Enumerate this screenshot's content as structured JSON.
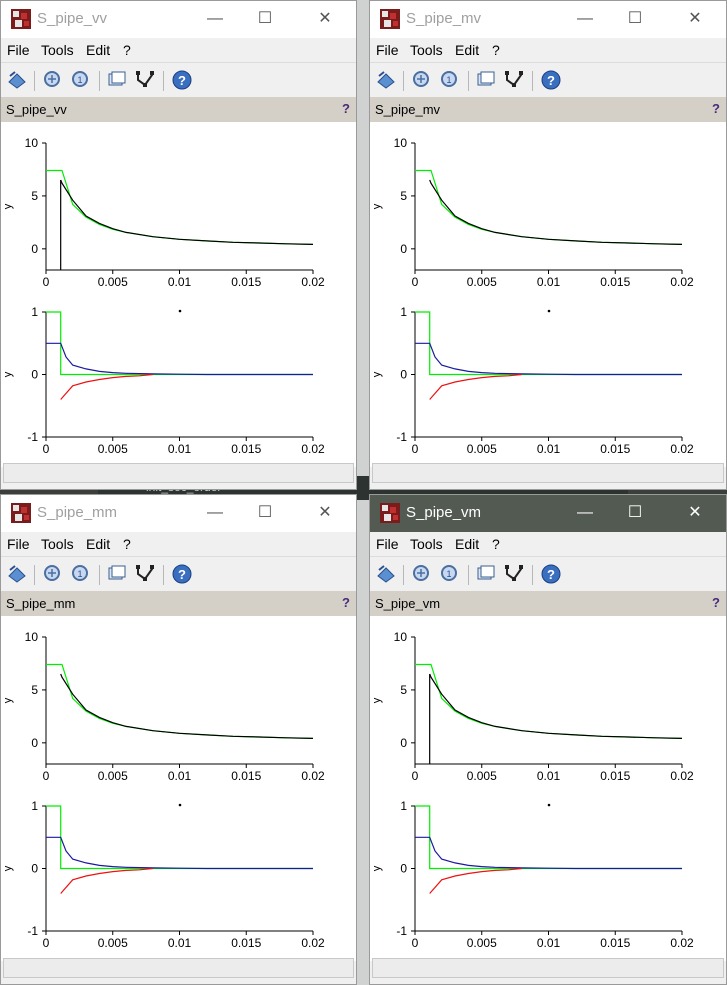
{
  "menu": {
    "file": "File",
    "tools": "Tools",
    "edit": "Edit",
    "help": "?"
  },
  "background": {
    "window_fragment_1": "init_sec_order",
    "window_fragment_2": "..."
  },
  "colors": {
    "measured": "#000000",
    "reference": "#00ee00",
    "blue_signal": "#1a1aa0",
    "red_signal": "#ee1111",
    "active_titlebar": "#525a52"
  },
  "windows": [
    {
      "title": "S_pipe_vv",
      "figure_name": "S_pipe_vv",
      "help": "?",
      "active": false,
      "controls": {
        "minimize": "—",
        "maximize": "☐",
        "close": "✕"
      }
    },
    {
      "title": "S_pipe_mv",
      "figure_name": "S_pipe_mv",
      "help": "?",
      "active": false,
      "controls": {
        "minimize": "—",
        "maximize": "☐",
        "close": "✕"
      }
    },
    {
      "title": "S_pipe_mm",
      "figure_name": "S_pipe_mm",
      "help": "?",
      "active": false,
      "controls": {
        "minimize": "—",
        "maximize": "☐",
        "close": "✕"
      }
    },
    {
      "title": "S_pipe_vm",
      "figure_name": "S_pipe_vm",
      "help": "?",
      "active": true,
      "controls": {
        "minimize": "—",
        "maximize": "☐",
        "close": "✕"
      }
    }
  ],
  "chart_data": [
    {
      "type": "line",
      "title": "",
      "ylabel": "y",
      "xlim": [
        0,
        0.02
      ],
      "ylim": [
        -2,
        10
      ],
      "x_ticks": [
        "0",
        "0.005",
        "0.01",
        "0.015",
        "0.02"
      ],
      "y_ticks": [
        "10",
        "5",
        "0"
      ],
      "series": [
        {
          "color": "#00ee00",
          "x": [
            0,
            0.0012,
            0.002,
            0.003,
            0.004,
            0.005,
            0.006,
            0.008,
            0.01,
            0.012,
            0.014,
            0.016,
            0.018,
            0.02
          ],
          "y": [
            7.4,
            7.4,
            4.2,
            3.0,
            2.3,
            1.85,
            1.55,
            1.15,
            0.9,
            0.75,
            0.62,
            0.55,
            0.48,
            0.42
          ]
        },
        {
          "color": "#000000",
          "x": [
            0.0011,
            0.0012,
            0.002,
            0.003,
            0.004,
            0.005,
            0.006,
            0.008,
            0.01,
            0.012,
            0.014,
            0.016,
            0.018,
            0.02
          ],
          "y": [
            6.5,
            6.2,
            4.6,
            3.1,
            2.4,
            1.9,
            1.55,
            1.15,
            0.9,
            0.75,
            0.62,
            0.55,
            0.48,
            0.42
          ]
        }
      ]
    },
    {
      "type": "line",
      "title": "",
      "ylabel": "y",
      "xlim": [
        0,
        0.02
      ],
      "ylim": [
        -1,
        1
      ],
      "x_ticks": [
        "0",
        "0.005",
        "0.01",
        "0.015",
        "0.02"
      ],
      "y_ticks": [
        "1",
        "0",
        "-1"
      ],
      "series": [
        {
          "color": "#00ee00",
          "x": [
            0,
            0.0011,
            0.0011,
            0.02
          ],
          "y": [
            1,
            1,
            0,
            0
          ]
        },
        {
          "color": "#1a1aa0",
          "x": [
            0,
            0.0011,
            0.0015,
            0.002,
            0.003,
            0.004,
            0.005,
            0.006,
            0.008,
            0.01,
            0.012,
            0.02
          ],
          "y": [
            0.5,
            0.5,
            0.28,
            0.15,
            0.09,
            0.05,
            0.03,
            0.02,
            0.01,
            0.005,
            0.0,
            0.0
          ]
        },
        {
          "color": "#ee1111",
          "x": [
            0.0011,
            0.0013,
            0.002,
            0.003,
            0.004,
            0.005,
            0.006,
            0.007,
            0.008
          ],
          "y": [
            -0.4,
            -0.35,
            -0.18,
            -0.12,
            -0.08,
            -0.05,
            -0.03,
            -0.02,
            0
          ]
        }
      ]
    }
  ]
}
